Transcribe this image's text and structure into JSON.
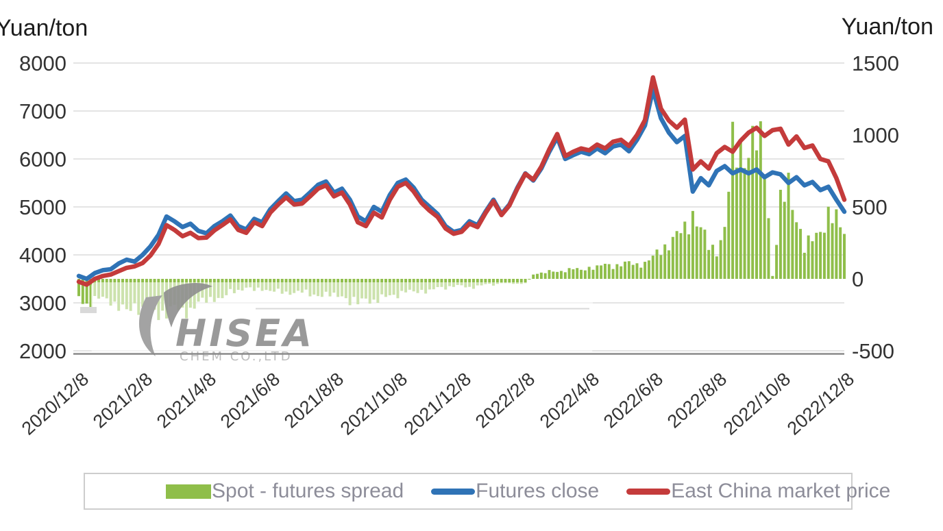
{
  "header": {
    "left_axis_title": "Yuan/ton",
    "right_axis_title": "Yuan/ton"
  },
  "watermark": {
    "name": "HISEA",
    "subtitle": "CHEM CO.,LTD"
  },
  "colors": {
    "spread_green": "#8fbe4a",
    "futures_blue": "#2f73b6",
    "spot_red": "#c43b3b",
    "gridline": "#dcdcdc",
    "axis_line": "#8a8a8a",
    "tick_text": "#333333",
    "legend_text": "#8d8d99",
    "legend_border": "#cdcdcd",
    "watermark_gray": "#8f8f8f"
  },
  "legend": {
    "items": [
      {
        "label": "Spot - futures spread",
        "swatch": "bar",
        "color_key": "spread_green"
      },
      {
        "label": "Futures close",
        "swatch": "line",
        "color_key": "futures_blue"
      },
      {
        "label": "East China market price",
        "swatch": "line",
        "color_key": "spot_red"
      }
    ]
  },
  "chart_data": {
    "type": "combo",
    "title": "",
    "x_unit": "months since 2020/12/8",
    "x_start": 0,
    "x_step": 0.25,
    "x_tick_labels": [
      "2020/12/8",
      "2021/2/8",
      "2021/4/8",
      "2021/6/8",
      "2021/8/8",
      "2021/10/8",
      "2021/12/8",
      "2022/2/8",
      "2022/4/8",
      "2022/6/8",
      "2022/8/8",
      "2022/10/8",
      "2022/12/8"
    ],
    "left_axis": {
      "title": "Yuan/ton",
      "ticks": [
        8000,
        7000,
        6000,
        5000,
        4000,
        3000,
        2000
      ],
      "min": 2000,
      "max": 8000,
      "grid": true
    },
    "right_axis": {
      "title": "Yuan/ton",
      "ticks": [
        1500,
        1000,
        500,
        0,
        -500
      ],
      "min": -500,
      "max": 1500,
      "grid": false
    },
    "legend_position": "bottom",
    "series": [
      {
        "name": "Spot - futures spread",
        "type": "bar",
        "axis": "right",
        "values": [
          -120,
          -180,
          -150,
          -130,
          -150,
          -200,
          -230,
          -180,
          -220,
          -250,
          -240,
          -230,
          -200,
          -230,
          -210,
          -170,
          -150,
          -130,
          -140,
          -90,
          -80,
          -60,
          -80,
          -70,
          -80,
          -90,
          -100,
          -90,
          -90,
          -110,
          -110,
          -110,
          -120,
          -110,
          -160,
          -170,
          -130,
          -160,
          -140,
          -110,
          -110,
          -90,
          -90,
          -80,
          -90,
          -60,
          -60,
          -50,
          -50,
          -60,
          -50,
          -40,
          -40,
          -30,
          -30,
          -40,
          -30,
          30,
          40,
          50,
          50,
          60,
          70,
          60,
          80,
          80,
          100,
          90,
          100,
          110,
          100,
          110,
          150,
          200,
          250,
          300,
          340,
          460,
          350,
          220,
          200,
          350,
          880,
          920,
          900,
          940,
          860,
          20,
          500,
          650,
          450,
          200,
          280,
          350,
          430,
          400,
          350
        ]
      },
      {
        "name": "Futures close",
        "type": "line",
        "axis": "left",
        "values": [
          3560,
          3500,
          3620,
          3680,
          3700,
          3820,
          3900,
          3860,
          4000,
          4180,
          4420,
          4800,
          4700,
          4580,
          4650,
          4500,
          4450,
          4600,
          4700,
          4820,
          4600,
          4530,
          4750,
          4680,
          4950,
          5120,
          5280,
          5120,
          5150,
          5300,
          5460,
          5530,
          5300,
          5380,
          5150,
          4800,
          4700,
          5000,
          4900,
          5250,
          5500,
          5570,
          5400,
          5150,
          5000,
          4850,
          4600,
          4480,
          4520,
          4700,
          4620,
          4900,
          5150,
          4850,
          5050,
          5400,
          5700,
          5550,
          5800,
          6150,
          6450,
          6000,
          6080,
          6150,
          6100,
          6220,
          6120,
          6260,
          6300,
          6160,
          6400,
          6700,
          7450,
          6850,
          6550,
          6350,
          6480,
          5320,
          5600,
          5450,
          5750,
          5850,
          5700,
          5780,
          5700,
          5780,
          5620,
          5720,
          5680,
          5500,
          5620,
          5450,
          5520,
          5350,
          5420,
          5150,
          4900
        ]
      },
      {
        "name": "East China market price",
        "type": "line",
        "axis": "left",
        "values": [
          3440,
          3380,
          3500,
          3560,
          3590,
          3660,
          3730,
          3760,
          3830,
          3990,
          4230,
          4620,
          4520,
          4390,
          4460,
          4350,
          4360,
          4510,
          4620,
          4740,
          4520,
          4460,
          4680,
          4600,
          4880,
          5050,
          5200,
          5050,
          5070,
          5220,
          5380,
          5450,
          5220,
          5300,
          5050,
          4680,
          4600,
          4880,
          4780,
          5150,
          5420,
          5500,
          5320,
          5080,
          4920,
          4790,
          4550,
          4440,
          4480,
          4650,
          4580,
          4870,
          5120,
          4830,
          5030,
          5380,
          5690,
          5570,
          5840,
          6200,
          6520,
          6060,
          6150,
          6220,
          6180,
          6300,
          6220,
          6360,
          6400,
          6270,
          6500,
          6810,
          7700,
          7050,
          6800,
          6650,
          6820,
          5780,
          5950,
          5800,
          6120,
          6250,
          6150,
          6380,
          6550,
          6650,
          6480,
          6600,
          6630,
          6300,
          6470,
          6230,
          6280,
          6000,
          5950,
          5600,
          5150
        ]
      }
    ]
  }
}
